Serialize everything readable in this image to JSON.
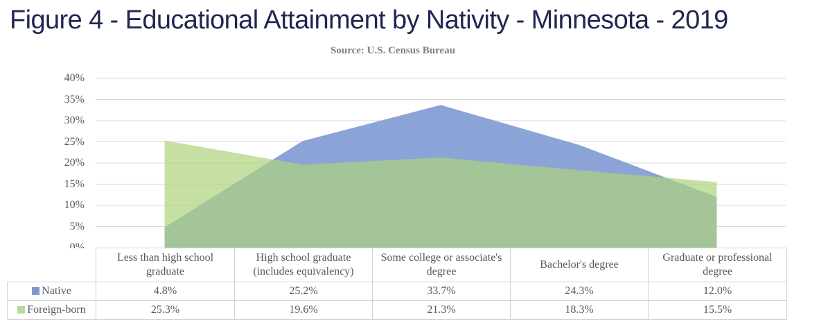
{
  "title": "Figure 4 - Educational Attainment by Nativity - Minnesota - 2019",
  "source": "Source: U.S. Census Bureau",
  "colors": {
    "title_text": "#1d2751",
    "source_text": "#7f7f7f",
    "axis_text": "#595959",
    "table_text": "#595959",
    "gridline": "#d9d9d9",
    "table_border": "#d2d2d2",
    "native_area": "#8ca3d7",
    "foreign_area": "#aed37d",
    "native_swatch": "#7d97cf",
    "foreign_swatch": "#b7d99c"
  },
  "chart_data": {
    "type": "area",
    "title": "Figure 4 - Educational Attainment by Nativity - Minnesota - 2019",
    "subtitle": "Source: U.S. Census Bureau",
    "categories": [
      "Less than high school graduate",
      "High school graduate (includes equivalency)",
      "Some college or associate's degree",
      "Bachelor's degree",
      "Graduate or professional degree"
    ],
    "series": [
      {
        "name": "Native",
        "values": [
          4.8,
          25.2,
          33.7,
          24.3,
          12.0
        ]
      },
      {
        "name": "Foreign-born",
        "values": [
          25.3,
          19.6,
          21.3,
          18.3,
          15.5
        ]
      }
    ],
    "ylim": [
      0,
      40
    ],
    "ytick_step": 5,
    "ytick_labels": [
      "0%",
      "5%",
      "10%",
      "15%",
      "20%",
      "25%",
      "30%",
      "35%",
      "40%"
    ],
    "grid": true,
    "legend_position": "table-left",
    "value_format": "percent_1dp"
  }
}
